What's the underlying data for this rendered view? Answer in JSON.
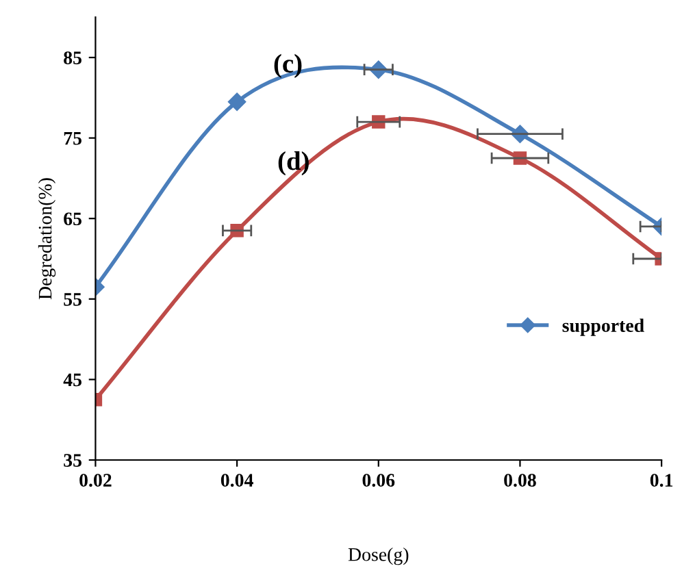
{
  "chart_data": {
    "type": "line",
    "xlabel": "Dose(g)",
    "ylabel": "Degredation(%)",
    "x": [
      0.02,
      0.04,
      0.06,
      0.08,
      0.1
    ],
    "series": [
      {
        "name": "supported",
        "color": "#4a7ebb",
        "marker": "diamond",
        "values": [
          56.5,
          79.5,
          83.5,
          75.5,
          64
        ],
        "xerrors": [
          null,
          null,
          0.002,
          0.006,
          [
            0.097,
            0.1
          ]
        ]
      },
      {
        "color": "#be4b48",
        "marker": "square",
        "values": [
          42.5,
          63.5,
          77,
          72.5,
          60
        ],
        "xerrors": [
          null,
          0.002,
          0.003,
          0.004,
          [
            0.096,
            0.1
          ]
        ]
      }
    ],
    "annotations": [
      "(c)",
      "(d)"
    ],
    "xlim": [
      0.02,
      0.1
    ],
    "xticks": [
      0.02,
      0.04,
      0.06,
      0.08,
      {
        "value": 0.1,
        "label": "0.1"
      }
    ],
    "ylim": [
      35,
      90
    ],
    "yticks": [
      35,
      45,
      55,
      65,
      75,
      85
    ],
    "legend": "right",
    "grid": false
  }
}
